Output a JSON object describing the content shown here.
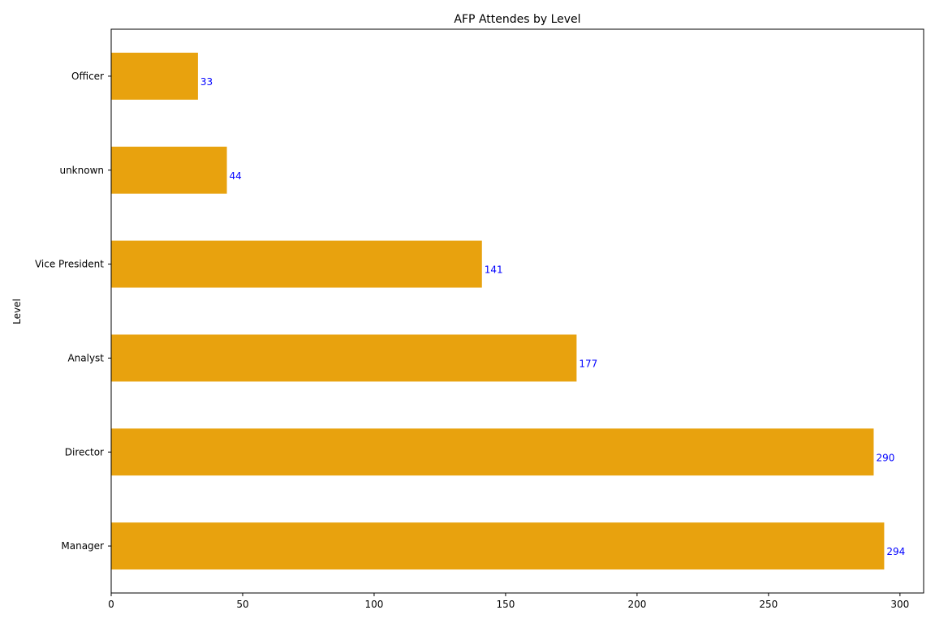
{
  "chart_data": {
    "type": "bar",
    "orientation": "horizontal",
    "title": "AFP Attendes by Level",
    "xlabel": "",
    "ylabel": "Level",
    "categories": [
      "Manager",
      "Director",
      "Analyst",
      "Vice President",
      "unknown",
      "Officer"
    ],
    "values": [
      294,
      290,
      177,
      141,
      44,
      33
    ],
    "xlim": [
      0,
      309
    ],
    "xticks": [
      0,
      50,
      100,
      150,
      200,
      250,
      300
    ],
    "grid": false,
    "bar_color": "#e8a20e",
    "label_color": "#0000ff"
  }
}
